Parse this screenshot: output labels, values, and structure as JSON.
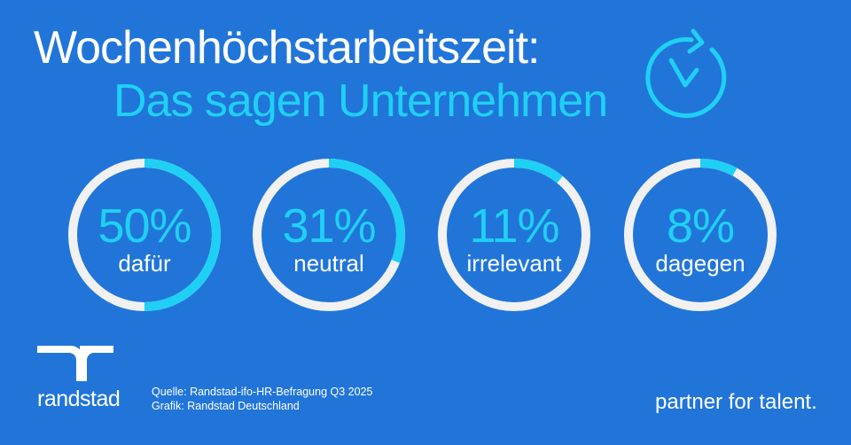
{
  "title": "Wochenhöchstarbeitszeit:",
  "subtitle": "Das sagen Unternehmen",
  "icon": "clock-refresh-icon",
  "colors": {
    "background": "#2175d9",
    "accent": "#1fd0f5",
    "track": "#f1f1f1"
  },
  "chart_data": {
    "type": "pie",
    "style": "donut-rings",
    "categories": [
      "dafür",
      "neutral",
      "irrelevant",
      "dagegen"
    ],
    "values": [
      50,
      31,
      11,
      8
    ],
    "labels": [
      "50%",
      "31%",
      "11%",
      "8%"
    ]
  },
  "footer": {
    "brand": "randstad",
    "source": "Quelle: Randstad-ifo-HR-Befragung Q3 2025",
    "graphic": "Grafik: Randstad Deutschland",
    "tagline": "partner for talent."
  }
}
